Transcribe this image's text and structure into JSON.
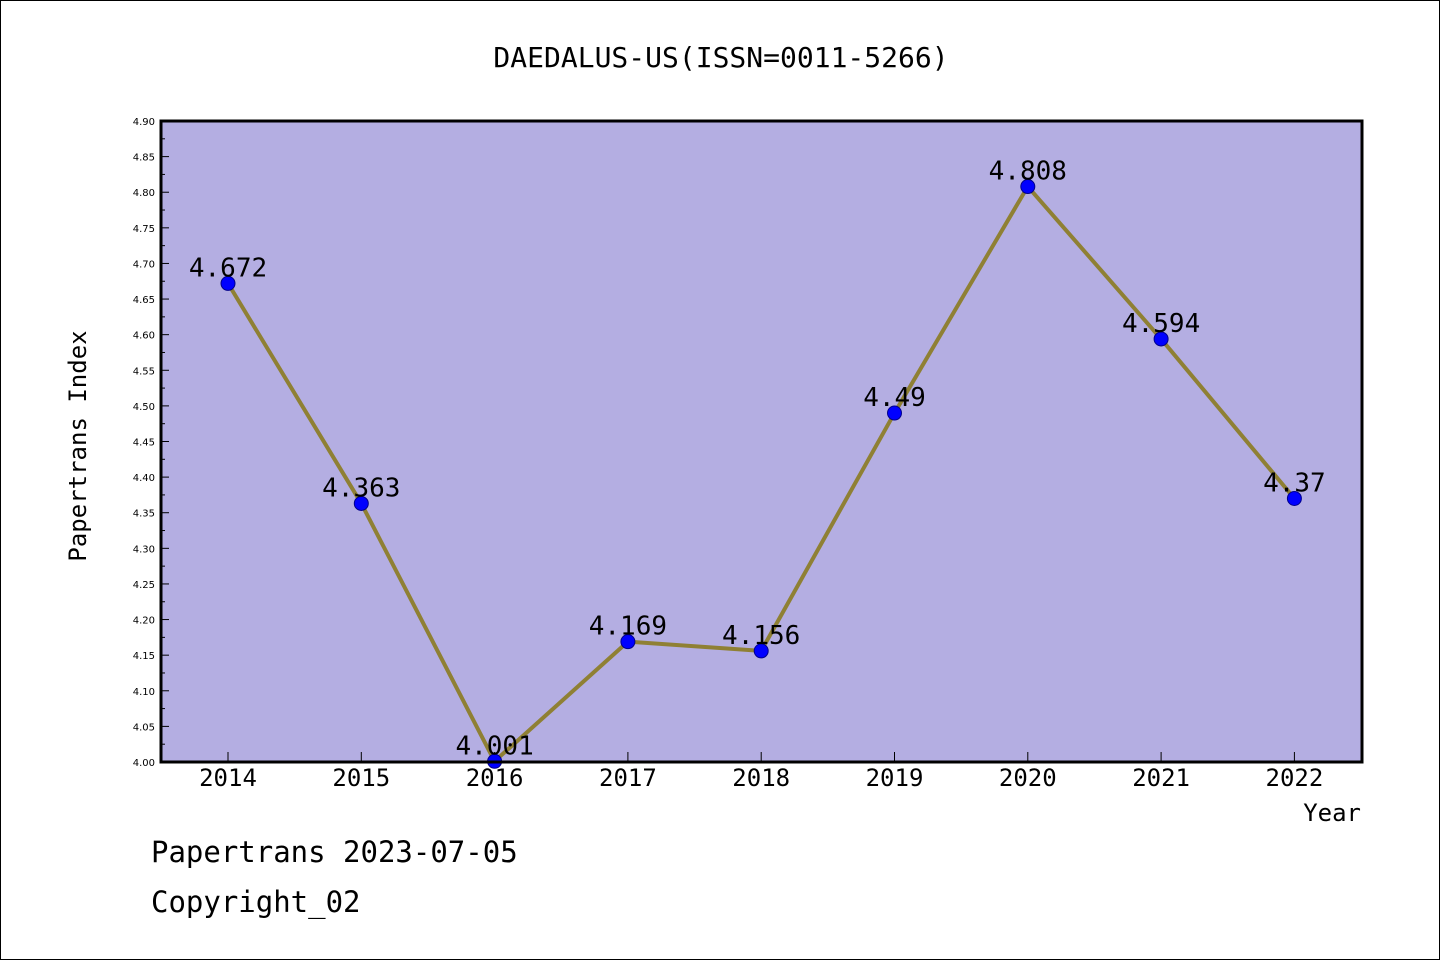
{
  "chart_data": {
    "type": "line",
    "title": "DAEDALUS-US(ISSN=0011-5266)",
    "xlabel": "Year",
    "ylabel": "Papertrans Index",
    "categories": [
      "2014",
      "2015",
      "2016",
      "2017",
      "2018",
      "2019",
      "2020",
      "2021",
      "2022"
    ],
    "series": [
      {
        "values": [
          4.672,
          4.363,
          4.001,
          4.169,
          4.156,
          4.49,
          4.808,
          4.594,
          4.37
        ],
        "labels": [
          "4.672",
          "4.363",
          "4.001",
          "4.169",
          "4.156",
          "4.49",
          "4.808",
          "4.594",
          "4.37"
        ]
      }
    ],
    "ylim": [
      4.0,
      4.9
    ],
    "yticks": [
      "4.00",
      "4.05",
      "4.10",
      "4.15",
      "4.20",
      "4.25",
      "4.30",
      "4.35",
      "4.40",
      "4.45",
      "4.50",
      "4.55",
      "4.60",
      "4.65",
      "4.70",
      "4.75",
      "4.80",
      "4.85",
      "4.90"
    ],
    "grid": false,
    "colors": {
      "plot_background": "#b4aee2",
      "line": "#8f8034",
      "marker": "#0000ff"
    }
  },
  "footer": {
    "date_line": "Papertrans 2023-07-05",
    "copyright": "Copyright_02"
  }
}
